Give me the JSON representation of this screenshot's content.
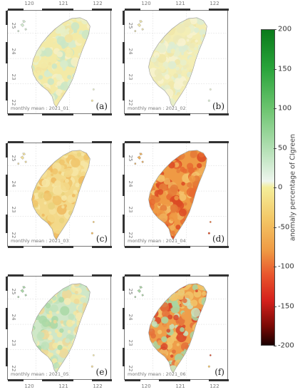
{
  "panels": [
    {
      "caption": "monthly mean : 2021_01",
      "label": "(a)",
      "tone": "mixed-light"
    },
    {
      "caption": "monthly mean : 2021_02",
      "label": "(b)",
      "tone": "light"
    },
    {
      "caption": "monthly mean : 2021_03",
      "label": "(c)",
      "tone": "yellow-orange"
    },
    {
      "caption": "monthly mean : 2021_04",
      "label": "(d)",
      "tone": "orange-red"
    },
    {
      "caption": "monthly mean : 2021_05",
      "label": "(e)",
      "tone": "green-mixed"
    },
    {
      "caption": "monthly mean : 2021_06",
      "label": "(f)",
      "tone": "red-green"
    }
  ],
  "x_ticks": [
    "120",
    "121",
    "122"
  ],
  "y_ticks": [
    "25",
    "24",
    "23",
    "22"
  ],
  "colorbar": {
    "title": "anomaly percentage of CIgreen",
    "ticks": [
      "200",
      "150",
      "100",
      "50",
      "0",
      "-50",
      "-100",
      "-150",
      "-200"
    ],
    "range": [
      -200,
      200
    ],
    "colors": {
      "max": "#0a7a1a",
      "zero": "#f4ee9a",
      "min": "#1a0000"
    }
  }
}
